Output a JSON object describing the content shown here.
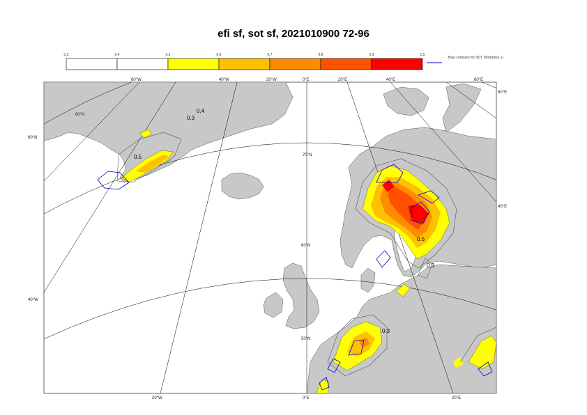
{
  "title": "efi sf, sot sf, 2021010900 72-96",
  "legend": {
    "ticks": [
      "0.3",
      "0.4",
      "0.5",
      "0.6",
      "0.7",
      "0.8",
      "0.9",
      "1.5"
    ],
    "bins": [
      {
        "from": 0.3,
        "to": 0.4,
        "color": "#ffffff"
      },
      {
        "from": 0.4,
        "to": 0.5,
        "color": "#ffffff"
      },
      {
        "from": 0.5,
        "to": 0.6,
        "color": "#ffff00"
      },
      {
        "from": 0.6,
        "to": 0.7,
        "color": "#ffc000"
      },
      {
        "from": 0.7,
        "to": 0.8,
        "color": "#ff8c00"
      },
      {
        "from": 0.8,
        "to": 0.9,
        "color": "#ff5000"
      },
      {
        "from": 0.9,
        "to": 1.5,
        "color": "#ff0000"
      }
    ],
    "sot_note": "Blue contours for SOT (thickness 1)",
    "sot_color": "#0000cc"
  },
  "map": {
    "colors": {
      "land": "#c8c8c8",
      "sea": "#ffffff",
      "coast": "#555555",
      "grid": "#000000"
    },
    "top_labels": [
      "60°W",
      "40°W",
      "20°W",
      "0°E",
      "20°E",
      "40°E",
      "60°E"
    ],
    "bottom_labels": [
      "20°W",
      "0°E",
      "20°E"
    ],
    "left_labels": [
      "60°N",
      "40°W"
    ],
    "right_labels": [
      "60°E",
      "40°E"
    ],
    "inner_labels": [
      "60°N",
      "70°N",
      "60°N",
      "50°N"
    ],
    "contour_labels": [
      "0.4",
      "0.3",
      "0.5",
      "0.5",
      "0.3",
      "0.3"
    ]
  }
}
